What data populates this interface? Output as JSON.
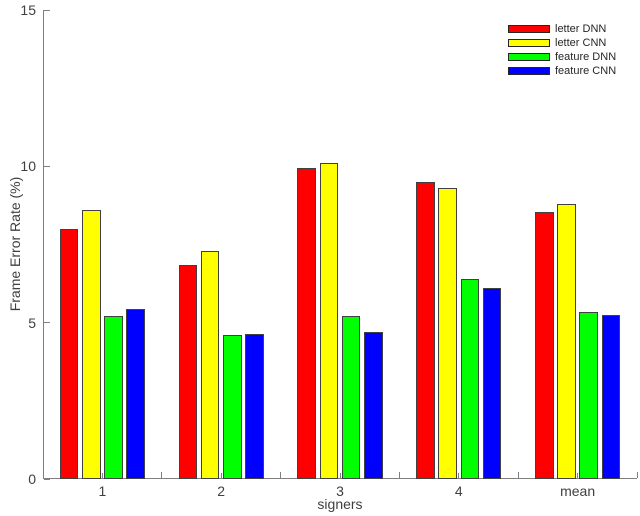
{
  "style": {
    "background": "#ffffff",
    "axis_color": "#7f7f7f",
    "text_color": "#404040",
    "bar_edge_color": "#404040"
  },
  "chart_data": {
    "type": "bar",
    "title": "",
    "xlabel": "signers",
    "ylabel": "Frame Error Rate (%)",
    "categories": [
      "1",
      "2",
      "3",
      "4",
      "mean"
    ],
    "series": [
      {
        "name": "letter DNN",
        "color": "#ff0000",
        "values": [
          8.0,
          6.85,
          9.95,
          9.5,
          8.55
        ]
      },
      {
        "name": "letter CNN",
        "color": "#ffff00",
        "values": [
          8.6,
          7.3,
          10.1,
          9.3,
          8.8
        ]
      },
      {
        "name": "feature DNN",
        "color": "#00ff00",
        "values": [
          5.2,
          4.6,
          5.2,
          6.4,
          5.35
        ]
      },
      {
        "name": "feature CNN",
        "color": "#0000ff",
        "values": [
          5.45,
          4.65,
          4.7,
          6.1,
          5.25
        ]
      }
    ],
    "ylim": [
      0,
      15
    ],
    "yticks": [
      0,
      5,
      10,
      15
    ],
    "grid": false,
    "legend_position": "upper-right"
  }
}
